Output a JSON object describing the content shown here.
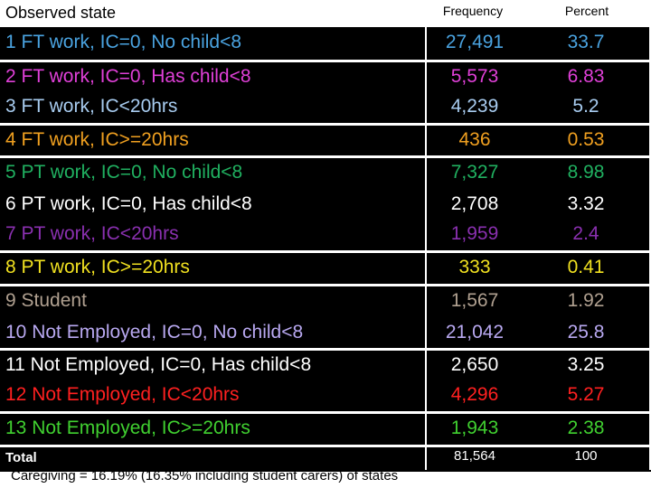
{
  "header": {
    "title": "Observed state",
    "col_frequency": "Frequency",
    "col_percent": "Percent"
  },
  "rows": [
    {
      "label": "1 FT work, IC=0, No child<8",
      "frequency": "27,491",
      "percent": "33.7",
      "color": "#4aa3e0"
    },
    {
      "label": "2 FT work, IC=0, Has child<8",
      "frequency": "5,573",
      "percent": "6.83",
      "color": "#e040d8"
    },
    {
      "label": "3 FT work, IC<20hrs",
      "frequency": "4,239",
      "percent": "5.2",
      "color": "#a8ccf0"
    },
    {
      "label": "4 FT work, IC>=20hrs",
      "frequency": "436",
      "percent": "0.53",
      "color": "#f0a020"
    },
    {
      "label": "5 PT work, IC=0, No child<8",
      "frequency": "7,327",
      "percent": "8.98",
      "color": "#20b060"
    },
    {
      "label": "6 PT work, IC=0, Has child<8",
      "frequency": "2,708",
      "percent": "3.32",
      "color": "#ffffff"
    },
    {
      "label": "7 PT work, IC<20hrs",
      "frequency": "1,959",
      "percent": "2.4",
      "color": "#8a30b0"
    },
    {
      "label": "8 PT work, IC>=20hrs",
      "frequency": "333",
      "percent": "0.41",
      "color": "#f0e020"
    },
    {
      "label": "9 Student",
      "frequency": "1,567",
      "percent": "1.92",
      "color": "#b0a090"
    },
    {
      "label": "10 Not Employed, IC=0, No child<8",
      "frequency": "21,042",
      "percent": "25.8",
      "color": "#b8a8f0"
    },
    {
      "label": "11 Not Employed, IC=0, Has child<8",
      "frequency": "2,650",
      "percent": "3.25",
      "color": "#ffffff"
    },
    {
      "label": "12 Not Employed, IC<20hrs",
      "frequency": "4,296",
      "percent": "5.27",
      "color": "#ff2020"
    },
    {
      "label": "13 Not Employed, IC>=20hrs",
      "frequency": "1,943",
      "percent": "2.38",
      "color": "#40d030"
    }
  ],
  "total": {
    "label": "Total",
    "frequency": "81,564",
    "percent": "100"
  },
  "footer": {
    "text": "Caregiving = 16.19% (16.35% including student carers) of states"
  }
}
